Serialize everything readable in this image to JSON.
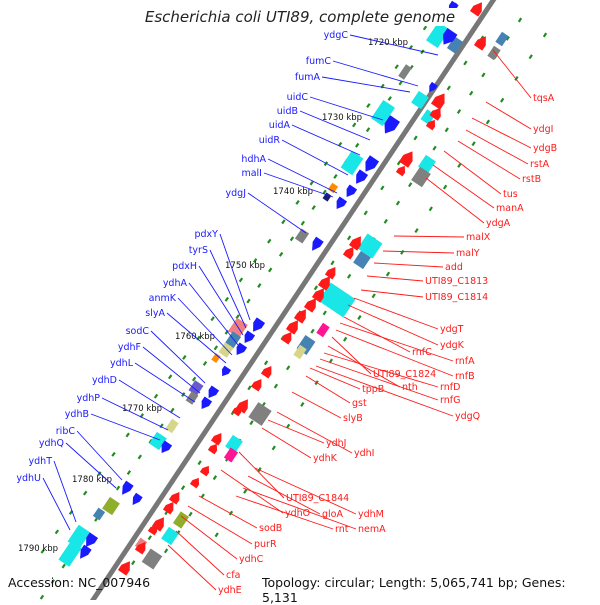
{
  "title": "Escherichia coli UTI89, complete genome",
  "accession": "Accession: NC_007946",
  "summary": "Topology: circular; Length: 5,065,741 bp; Genes: 5,131",
  "colors": {
    "axis": "#777777",
    "forward": "#1a1aff",
    "reverse": "#ff1a1a",
    "tick": "#228b22",
    "cog_cyan": "#19e6e6",
    "cog_steel": "#4682b4",
    "cog_grey": "#808080",
    "cog_magenta": "#ff1493",
    "cog_olive": "#8fae2b",
    "cog_orange": "#ff8c00",
    "cog_pink": "#f08080",
    "cog_purple": "#6a5acd",
    "cog_navy": "#1c1c6e",
    "cog_khaki": "#d6d68a"
  },
  "ruler": [
    "1720 kbp",
    "1730 kbp",
    "1740 kbp",
    "1750 kbp",
    "1760 kbp",
    "1770 kbp",
    "1780 kbp",
    "1790 kbp"
  ],
  "forward_genes": [
    "ydgC",
    "fumC",
    "fumA",
    "uidC",
    "uidB",
    "uidA",
    "uidR",
    "hdhA",
    "malI",
    "ydgJ",
    "pdxY",
    "tyrS",
    "pdxH",
    "ydhA",
    "anmK",
    "slyA",
    "sodC",
    "ydhF",
    "ydhL",
    "ydhD",
    "ydhP",
    "ydhB",
    "ribC",
    "ydhQ",
    "ydhT",
    "ydhU"
  ],
  "reverse_genes": [
    "tqsA",
    "ydgI",
    "ydgB",
    "rstA",
    "rstB",
    "tus",
    "manA",
    "ydgA",
    "malX",
    "malY",
    "add",
    "UTI89_C1813",
    "UTI89_C1814",
    "ydgT",
    "ydgK",
    "rnfC",
    "rnfA",
    "rnfB",
    "UTI89_C1824",
    "nth",
    "rnfD",
    "rnfG",
    "ydgQ",
    "gst",
    "tppB",
    "slyB",
    "ydhI",
    "ydhJ",
    "ydhK",
    "UTI89_C1844",
    "ydhM",
    "gloA",
    "nemA",
    "ydhO",
    "rnt",
    "sodB",
    "purR",
    "ydhC",
    "cfa",
    "ydhE"
  ]
}
